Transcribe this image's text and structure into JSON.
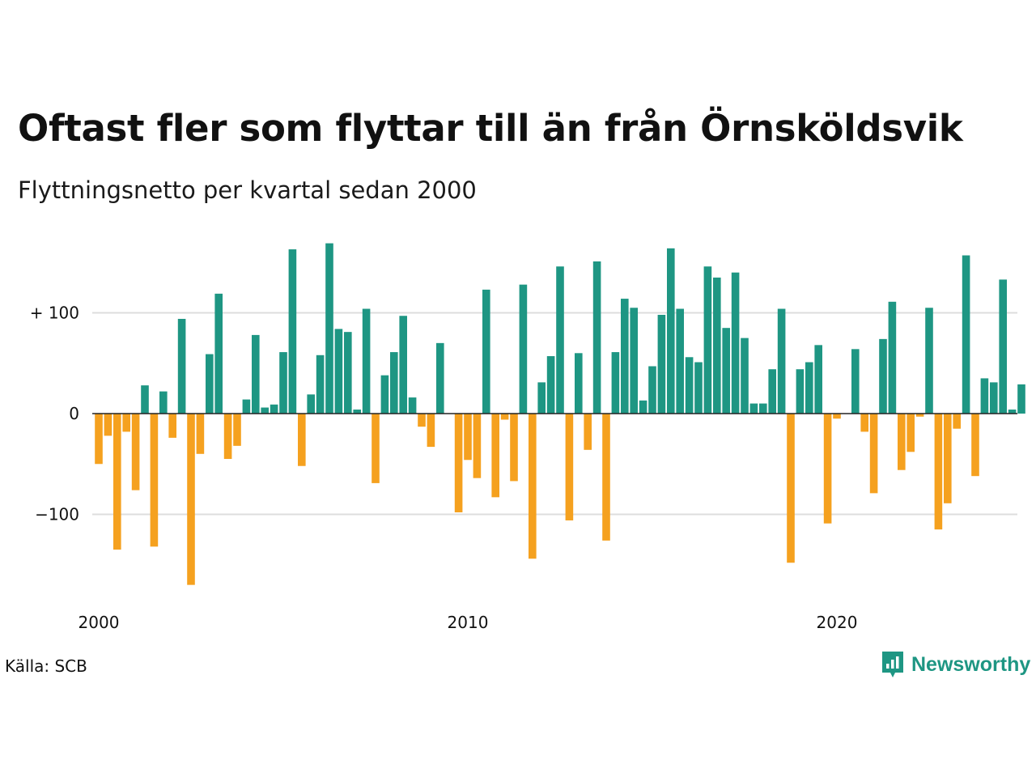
{
  "title": "Oftast fler som flyttar till än från Örnsköldsvik",
  "subtitle": "Flyttningsnetto per kvartal sedan 2000",
  "source": "Källa: SCB",
  "brand": {
    "name": "Newsworthy",
    "icon": "bar-chart-speech-bubble-icon"
  },
  "colors": {
    "positive": "#1e9683",
    "negative": "#f5a11f",
    "grid": "#dddddd",
    "zero": "#222222"
  },
  "chart_data": {
    "type": "bar",
    "title": "Oftast fler som flyttar till än från Örnsköldsvik",
    "subtitle": "Flyttningsnetto per kvartal sedan 2000",
    "xlabel": "",
    "ylabel": "",
    "x_ticks": [
      "2000",
      "2010",
      "2020"
    ],
    "y_ticks": [
      {
        "value": 100,
        "label": "+ 100"
      },
      {
        "value": 0,
        "label": "0"
      },
      {
        "value": -100,
        "label": "−100"
      }
    ],
    "ylim": [
      -180,
      180
    ],
    "grid": true,
    "start_year": 2000,
    "periods": [
      "2000 Q1",
      "2000 Q2",
      "2000 Q3",
      "2000 Q4",
      "2001 Q1",
      "2001 Q2",
      "2001 Q3",
      "2001 Q4",
      "2002 Q1",
      "2002 Q2",
      "2002 Q3",
      "2002 Q4",
      "2003 Q1",
      "2003 Q2",
      "2003 Q3",
      "2003 Q4",
      "2004 Q1",
      "2004 Q2",
      "2004 Q3",
      "2004 Q4",
      "2005 Q1",
      "2005 Q2",
      "2005 Q3",
      "2005 Q4",
      "2006 Q1",
      "2006 Q2",
      "2006 Q3",
      "2006 Q4",
      "2007 Q1",
      "2007 Q2",
      "2007 Q3",
      "2007 Q4",
      "2008 Q1",
      "2008 Q2",
      "2008 Q3",
      "2008 Q4",
      "2009 Q1",
      "2009 Q2",
      "2009 Q3",
      "2009 Q4",
      "2010 Q1",
      "2010 Q2",
      "2010 Q3",
      "2010 Q4",
      "2011 Q1",
      "2011 Q2",
      "2011 Q3",
      "2011 Q4",
      "2012 Q1",
      "2012 Q2",
      "2012 Q3",
      "2012 Q4",
      "2013 Q1",
      "2013 Q2",
      "2013 Q3",
      "2013 Q4",
      "2014 Q1",
      "2014 Q2",
      "2014 Q3",
      "2014 Q4",
      "2015 Q1",
      "2015 Q2",
      "2015 Q3",
      "2015 Q4",
      "2016 Q1",
      "2016 Q2",
      "2016 Q3",
      "2016 Q4",
      "2017 Q1",
      "2017 Q2",
      "2017 Q3",
      "2017 Q4",
      "2018 Q1",
      "2018 Q2",
      "2018 Q3",
      "2018 Q4",
      "2019 Q1",
      "2019 Q2",
      "2019 Q3",
      "2019 Q4",
      "2020 Q1",
      "2020 Q2",
      "2020 Q3",
      "2020 Q4",
      "2021 Q1",
      "2021 Q2",
      "2021 Q3",
      "2021 Q4",
      "2022 Q1",
      "2022 Q2",
      "2022 Q3",
      "2022 Q4",
      "2023 Q1",
      "2023 Q2",
      "2023 Q3",
      "2023 Q4",
      "2024 Q1",
      "2024 Q2",
      "2024 Q3",
      "2024 Q4",
      "2025 Q1"
    ],
    "values": [
      -50,
      -22,
      -135,
      -18,
      -76,
      28,
      -132,
      22,
      -24,
      94,
      -170,
      -40,
      59,
      119,
      -45,
      -32,
      14,
      78,
      6,
      9,
      61,
      163,
      -52,
      19,
      58,
      169,
      84,
      81,
      4,
      104,
      -69,
      38,
      61,
      97,
      16,
      -13,
      -33,
      70,
      0,
      -98,
      -46,
      -64,
      123,
      -83,
      -6,
      -67,
      128,
      -144,
      31,
      57,
      146,
      -106,
      60,
      -36,
      151,
      -126,
      61,
      114,
      105,
      13,
      47,
      98,
      164,
      104,
      56,
      51,
      146,
      135,
      85,
      140,
      75,
      10,
      10,
      44,
      104,
      -148,
      44,
      51,
      68,
      -109,
      -5,
      0,
      64,
      -18,
      -79,
      74,
      111,
      -56,
      -38,
      -3,
      105,
      -115,
      -89,
      -15,
      157,
      -62,
      35,
      31,
      133,
      4,
      29
    ]
  }
}
